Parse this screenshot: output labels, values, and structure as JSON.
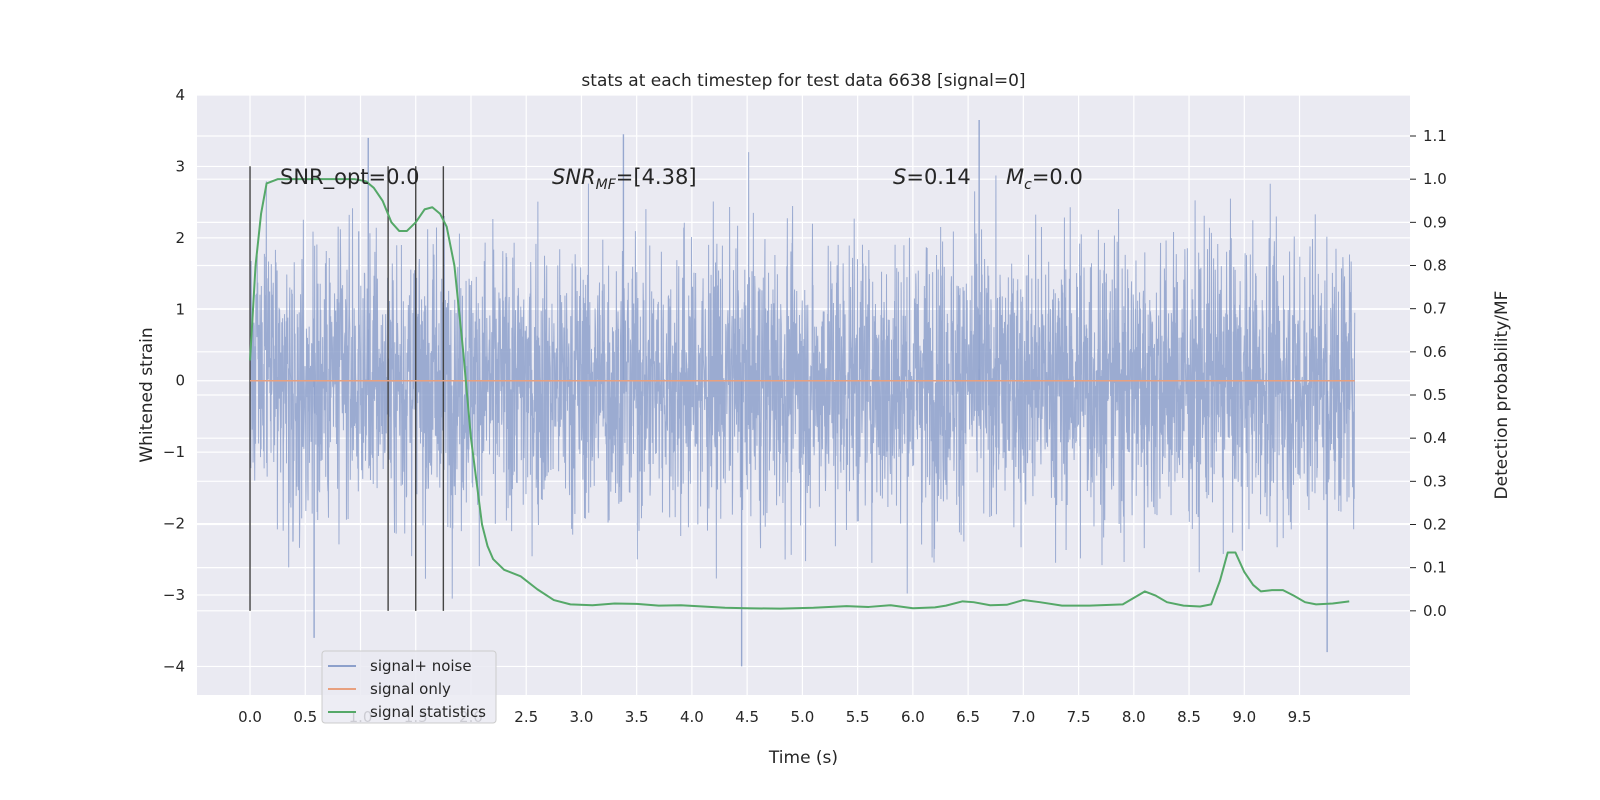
{
  "chart_data": {
    "type": "line",
    "title": "stats at each timestep for test data 6638 [signal=0]",
    "xlabel": "Time (s)",
    "ylabel": "Whitened strain",
    "y2label": "Detection probability/MF",
    "xlim": [
      -0.48,
      10.5
    ],
    "ylim": [
      -4.4,
      4.0
    ],
    "y2lim": [
      -0.195,
      1.195
    ],
    "xticks": [
      "0.0",
      "0.5",
      "1.0",
      "1.5",
      "2.0",
      "2.5",
      "3.0",
      "3.5",
      "4.0",
      "4.5",
      "5.0",
      "5.5",
      "6.0",
      "6.5",
      "7.0",
      "7.5",
      "8.0",
      "8.5",
      "9.0",
      "9.5"
    ],
    "yticks": [
      "4",
      "3",
      "2",
      "1",
      "0",
      "−1",
      "−2",
      "−3",
      "−4"
    ],
    "y2ticks": [
      "1.1",
      "1.0",
      "0.9",
      "0.8",
      "0.7",
      "0.6",
      "0.5",
      "0.4",
      "0.3",
      "0.2",
      "0.1",
      "0.0"
    ],
    "grid": true,
    "legend_position": "lower-left",
    "annotations": {
      "snr_opt": "SNR_opt=0.0",
      "snr_mf_base": "SNR",
      "snr_mf_sub": "MF",
      "snr_mf_value": "=[4.38]",
      "s_sym": "S",
      "s_value": "=0.14",
      "mc_base": "M",
      "mc_sub": "c",
      "mc_value": "=0.0"
    },
    "vertical_markers": [
      0.0,
      1.25,
      1.5,
      1.75
    ],
    "series": [
      {
        "name": "signal+ noise",
        "axis": "left",
        "color": "#8da0cb",
        "x_range": [
          0.0,
          10.0
        ],
        "points": 4000,
        "typical_envelope": [
          -2.1,
          2.1
        ],
        "extremes": [
          {
            "x": 0.58,
            "y": -3.6
          },
          {
            "x": 1.07,
            "y": 3.4
          },
          {
            "x": 3.38,
            "y": 3.45
          },
          {
            "x": 4.45,
            "y": -4.0
          },
          {
            "x": 6.6,
            "y": 3.65
          },
          {
            "x": 9.75,
            "y": -3.8
          }
        ]
      },
      {
        "name": "signal only",
        "axis": "left",
        "color": "#e8a07f",
        "x": [
          0.0,
          10.0
        ],
        "y": [
          0.0,
          0.0
        ]
      },
      {
        "name": "signal statistics",
        "axis": "right",
        "color": "#55a868",
        "x": [
          0.0,
          0.05,
          0.1,
          0.15,
          0.25,
          0.4,
          0.6,
          0.8,
          0.95,
          1.05,
          1.12,
          1.2,
          1.28,
          1.35,
          1.42,
          1.5,
          1.58,
          1.65,
          1.72,
          1.78,
          1.85,
          1.93,
          2.0,
          2.05,
          2.1,
          2.15,
          2.2,
          2.3,
          2.45,
          2.6,
          2.75,
          2.9,
          3.1,
          3.3,
          3.5,
          3.7,
          3.9,
          4.1,
          4.3,
          4.5,
          4.8,
          5.1,
          5.4,
          5.6,
          5.8,
          6.0,
          6.2,
          6.3,
          6.45,
          6.55,
          6.7,
          6.85,
          7.0,
          7.15,
          7.35,
          7.6,
          7.9,
          8.0,
          8.1,
          8.2,
          8.3,
          8.45,
          8.6,
          8.7,
          8.78,
          8.85,
          8.92,
          9.0,
          9.08,
          9.15,
          9.25,
          9.35,
          9.45,
          9.55,
          9.65,
          9.8,
          9.95
        ],
        "y": [
          0.58,
          0.8,
          0.92,
          0.99,
          1.0,
          1.0,
          1.0,
          1.0,
          1.0,
          0.995,
          0.98,
          0.95,
          0.9,
          0.88,
          0.88,
          0.9,
          0.93,
          0.935,
          0.92,
          0.89,
          0.8,
          0.6,
          0.4,
          0.3,
          0.2,
          0.15,
          0.12,
          0.095,
          0.08,
          0.05,
          0.025,
          0.015,
          0.013,
          0.017,
          0.016,
          0.012,
          0.013,
          0.01,
          0.007,
          0.006,
          0.005,
          0.007,
          0.011,
          0.009,
          0.013,
          0.006,
          0.008,
          0.012,
          0.022,
          0.02,
          0.013,
          0.014,
          0.025,
          0.02,
          0.012,
          0.012,
          0.015,
          0.03,
          0.045,
          0.035,
          0.02,
          0.012,
          0.01,
          0.015,
          0.07,
          0.135,
          0.135,
          0.09,
          0.06,
          0.045,
          0.048,
          0.048,
          0.035,
          0.02,
          0.015,
          0.017,
          0.022
        ]
      }
    ]
  }
}
